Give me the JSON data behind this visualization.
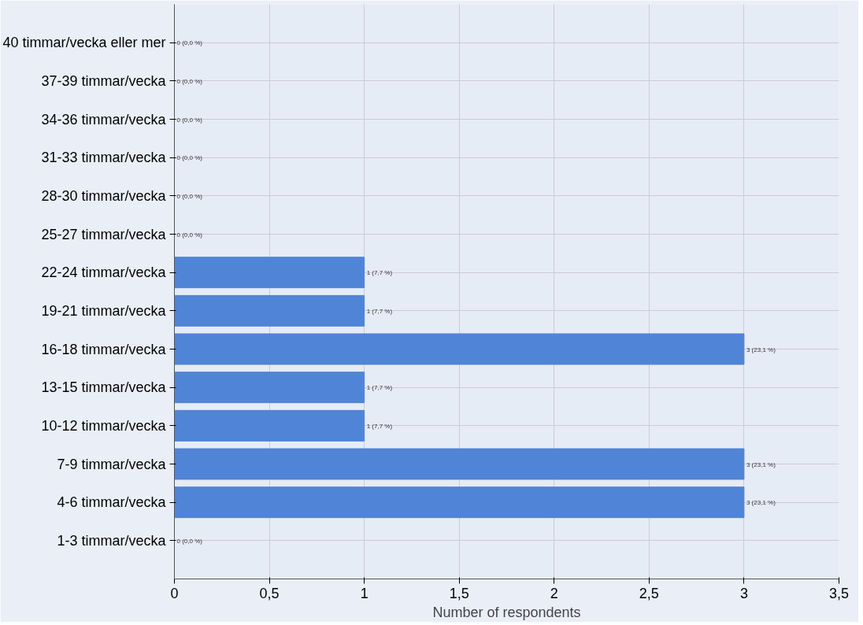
{
  "chart_data": {
    "type": "bar",
    "orientation": "horizontal",
    "xlabel": "Number of respondents",
    "categories": [
      "40 timmar/vecka eller mer",
      "37-39 timmar/vecka",
      "34-36 timmar/vecka",
      "31-33 timmar/vecka",
      "28-30 timmar/vecka",
      "25-27 timmar/vecka",
      "22-24 timmar/vecka",
      "19-21 timmar/vecka",
      "16-18 timmar/vecka",
      "13-15 timmar/vecka",
      "10-12 timmar/vecka",
      "7-9 timmar/vecka",
      "4-6 timmar/vecka",
      "1-3 timmar/vecka"
    ],
    "values": [
      0,
      0,
      0,
      0,
      0,
      0,
      1,
      1,
      3,
      1,
      1,
      3,
      3,
      0
    ],
    "value_labels": [
      "0 (0,0 %)",
      "0 (0,0 %)",
      "0 (0,0 %)",
      "0 (0,0 %)",
      "0 (0,0 %)",
      "0 (0,0 %)",
      "1 (7,7 %)",
      "1 (7,7 %)",
      "3 (23,1 %)",
      "1 (7,7 %)",
      "1 (7,7 %)",
      "3 (23,1 %)",
      "3 (23,1 %)",
      "0 (0,0 %)"
    ],
    "color": "#5084d6",
    "xlim": [
      0,
      3.5
    ],
    "xticks": [
      0,
      {
        "value": 0.5,
        "label": "0,5"
      },
      1,
      {
        "value": 1.5,
        "label": "1,5"
      },
      2,
      {
        "value": 2.5,
        "label": "2,5"
      },
      3,
      {
        "value": 3.5,
        "label": "3,5"
      }
    ],
    "grid": true
  }
}
